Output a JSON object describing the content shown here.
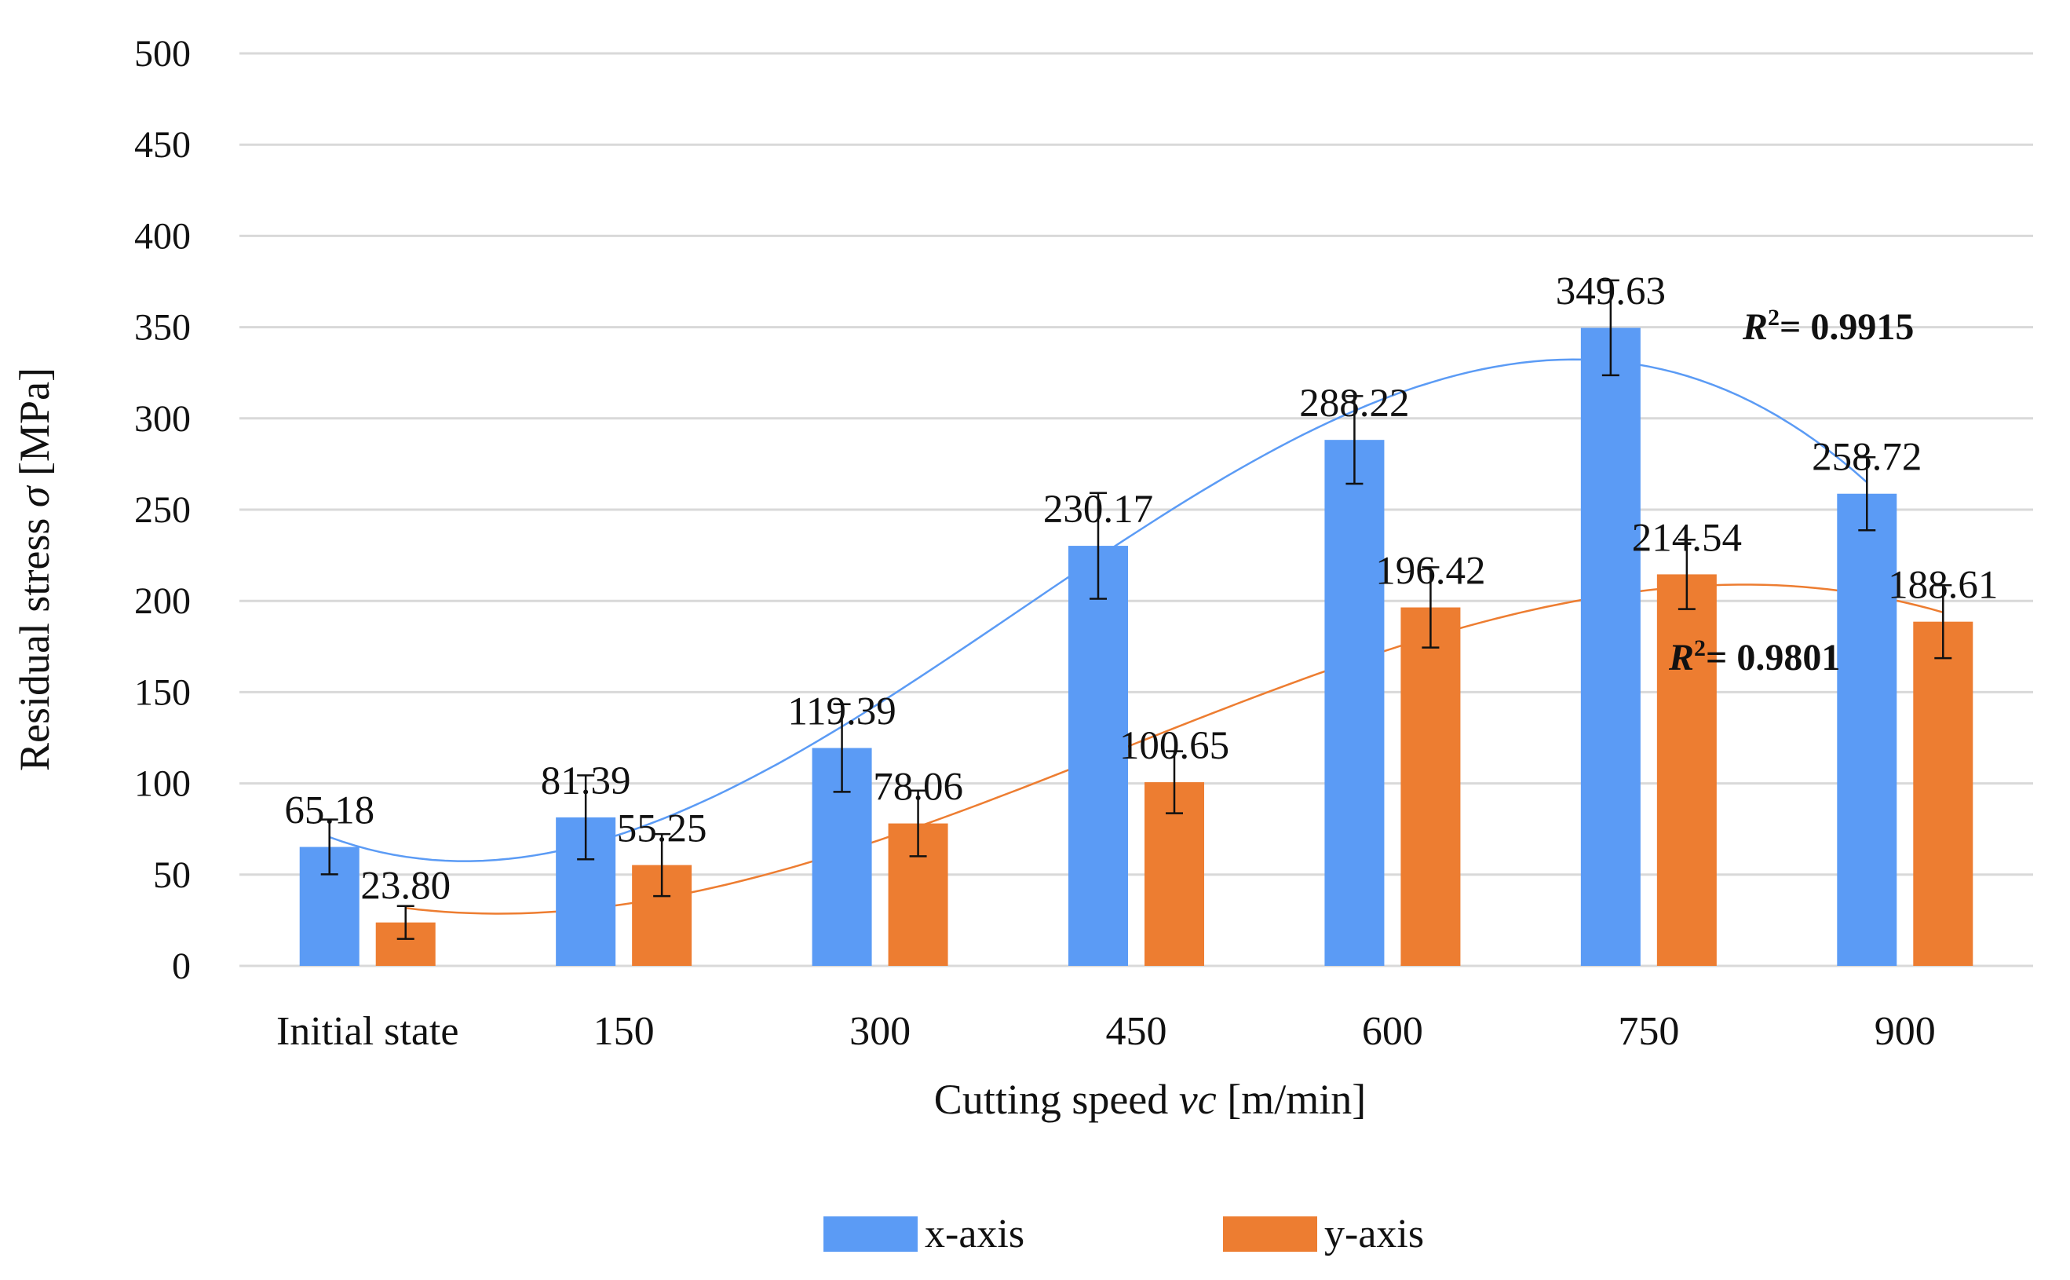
{
  "chart_data": {
    "type": "bar",
    "categories": [
      "Initial state",
      "150",
      "300",
      "450",
      "600",
      "750",
      "900"
    ],
    "series": [
      {
        "name": "x-axis",
        "color": "#5b9bf5",
        "values": [
          65.18,
          81.39,
          119.39,
          230.17,
          288.22,
          349.63,
          258.72
        ],
        "value_labels": [
          "65.18",
          "81.39",
          "119.39",
          "230.17",
          "288.22",
          "349.63",
          "258.72"
        ],
        "errors": [
          15,
          23,
          24,
          29,
          24,
          26,
          20
        ],
        "trendline": {
          "type": "polynomial",
          "r2_text": "= 0.9915",
          "color": "#5b9bf5"
        }
      },
      {
        "name": "y-axis",
        "color": "#ed7d31",
        "values": [
          23.8,
          55.25,
          78.06,
          100.65,
          196.42,
          214.54,
          188.61
        ],
        "value_labels": [
          "23.80",
          "55.25",
          "78.06",
          "100.65",
          "196.42",
          "214.54",
          "188.61"
        ],
        "errors": [
          9,
          17,
          18,
          17,
          22,
          19,
          20
        ],
        "trendline": {
          "type": "polynomial",
          "r2_text": "= 0.9801",
          "color": "#ed7d31"
        }
      }
    ],
    "ylabel_main": "Residual stress ",
    "ylabel_symbol": "σ",
    "ylabel_unit": " [MPa]",
    "xlabel_main": "Cutting speed ",
    "xlabel_symbol": "vc",
    "xlabel_unit": " [m/min]",
    "r2_prefix": "R",
    "r2_exponent": "2",
    "ylim": [
      0,
      500
    ],
    "yticks": [
      0,
      50,
      100,
      150,
      200,
      250,
      300,
      350,
      400,
      450,
      500
    ],
    "ytick_labels": [
      "0",
      "50",
      "100",
      "150",
      "200",
      "250",
      "300",
      "350",
      "400",
      "450",
      "500"
    ],
    "grid": true,
    "legend_position": "bottom-center"
  }
}
